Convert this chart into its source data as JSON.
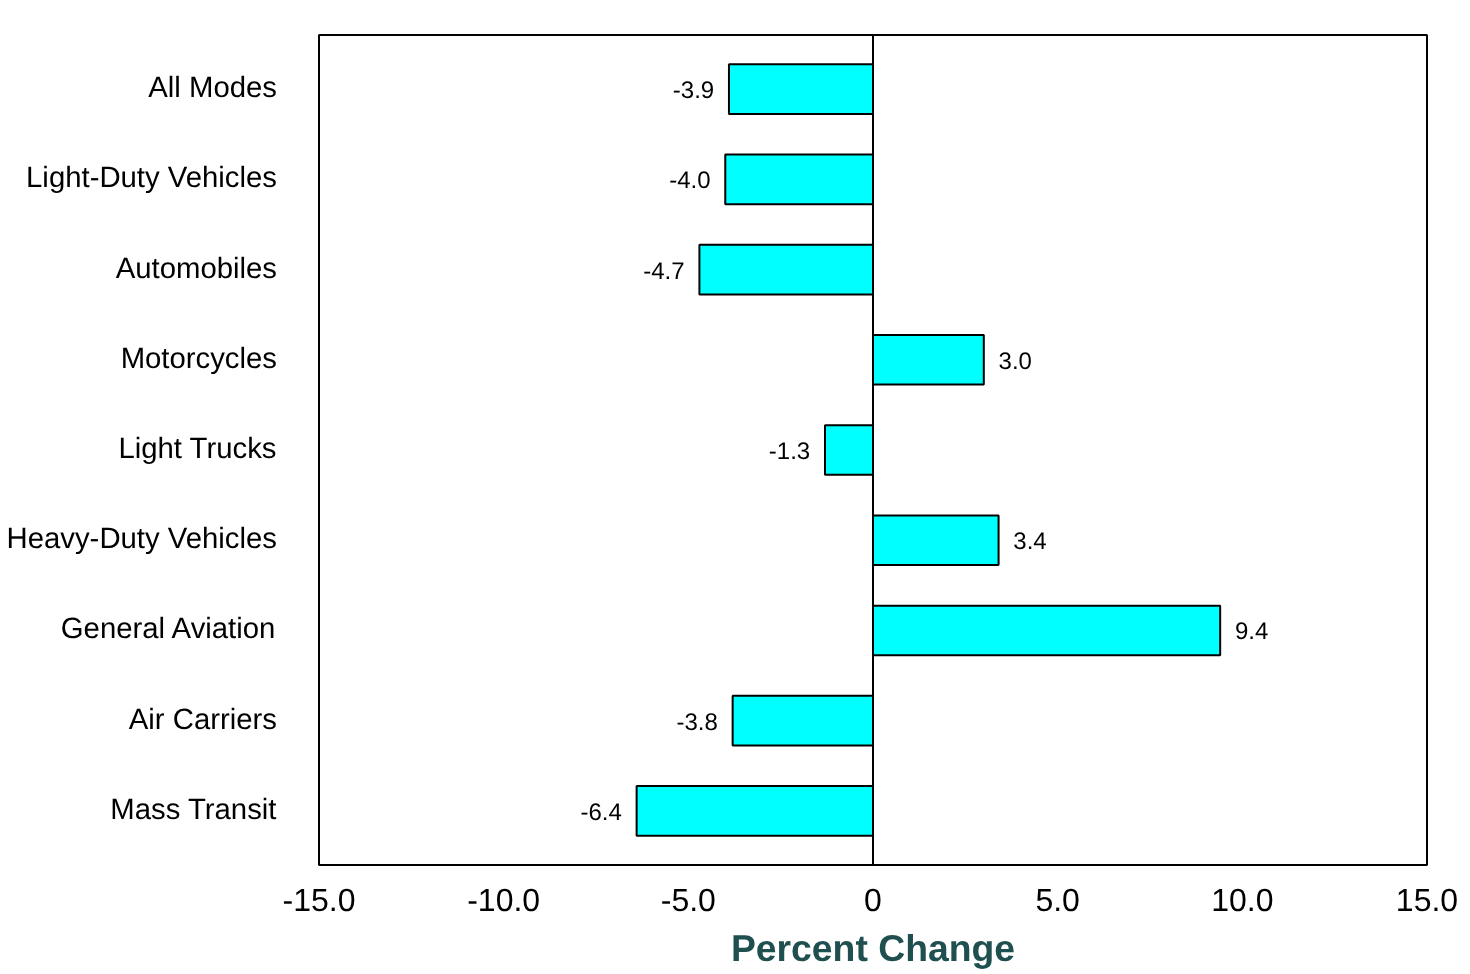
{
  "chart_data": {
    "type": "bar",
    "orientation": "horizontal",
    "xlabel": "Percent Change",
    "categories": [
      "All Modes",
      "Light-Duty Vehicles",
      "Automobiles",
      "Motorcycles",
      "Light Trucks",
      "Heavy-Duty Vehicles",
      "General Aviation",
      "Air Carriers",
      "Mass Transit"
    ],
    "values": [
      -3.9,
      -4.0,
      -4.7,
      3.0,
      -1.3,
      3.4,
      9.4,
      -3.8,
      -6.4
    ],
    "value_labels": [
      "-3.9",
      "-4.0",
      "-4.7",
      "3.0",
      "-1.3",
      "3.4",
      "9.4",
      "-3.8",
      "-6.4"
    ],
    "color": "#00ffff",
    "xlim": [
      -15,
      15
    ],
    "xticks": [
      {
        "value": -15,
        "label": "-15.0"
      },
      {
        "value": -10,
        "label": "-10.0"
      },
      {
        "value": -5,
        "label": "-5.0"
      },
      {
        "value": 0,
        "label": "0"
      },
      {
        "value": 5,
        "label": "5.0"
      },
      {
        "value": 10,
        "label": "10.0"
      },
      {
        "value": 15,
        "label": "15.0"
      }
    ],
    "ref_lines": [
      {
        "axis": "x",
        "value": 0,
        "color": "#000000",
        "line_style": "solid"
      }
    ]
  }
}
